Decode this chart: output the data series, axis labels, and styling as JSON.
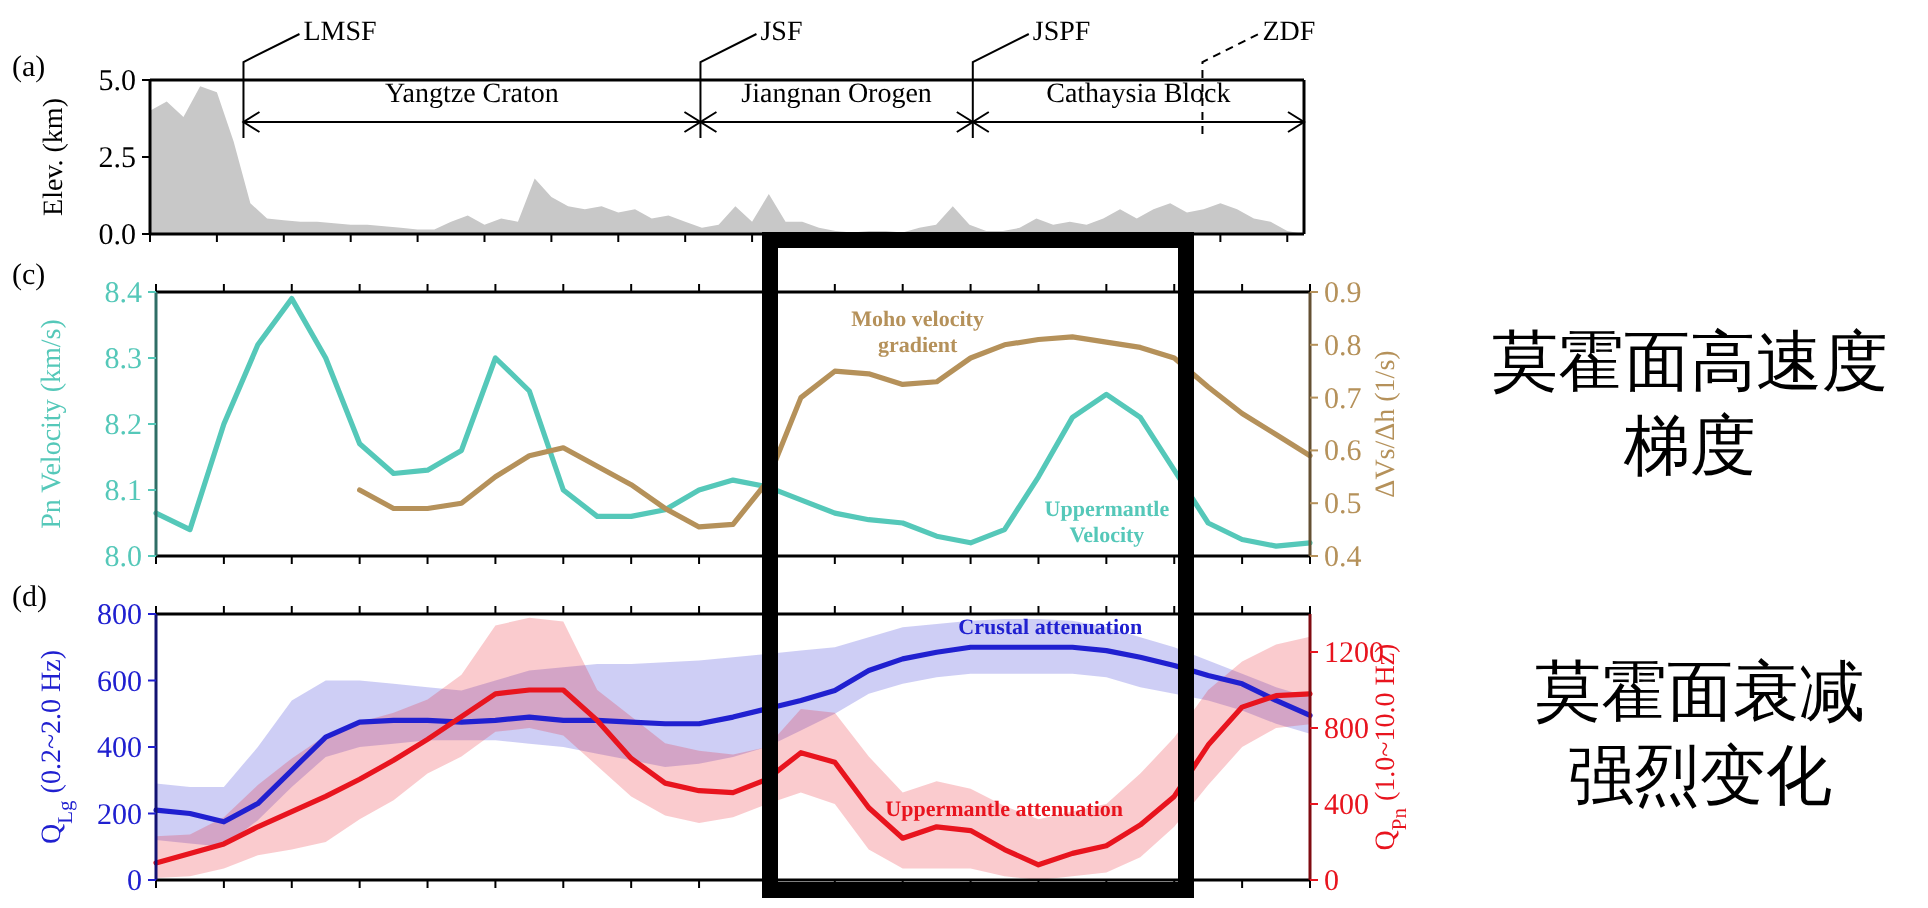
{
  "chart_data": [
    {
      "type": "area",
      "title": "(a)",
      "ylabel": "Elev. (km)",
      "color": "#c8c8c8",
      "categories": [
        null,
        null,
        null,
        null,
        null,
        null,
        null,
        null,
        null,
        null,
        null,
        null,
        null,
        null,
        null,
        null,
        null,
        null,
        null,
        null,
        null,
        null,
        null,
        null,
        null,
        null,
        null,
        null,
        null,
        null,
        null,
        null,
        null,
        null,
        null,
        null,
        null,
        null,
        null,
        null,
        null,
        null,
        null,
        null,
        null,
        null,
        null,
        null,
        null,
        null,
        null,
        null,
        null,
        null,
        null,
        null,
        null,
        null,
        null,
        null,
        null,
        null,
        null,
        null,
        null,
        null,
        null,
        null,
        null,
        null
      ],
      "values": [
        4.0,
        4.3,
        3.8,
        4.8,
        4.6,
        3.0,
        1.0,
        0.5,
        0.45,
        0.4,
        0.4,
        0.35,
        0.3,
        0.3,
        0.25,
        0.2,
        0.15,
        0.15,
        0.4,
        0.6,
        0.3,
        0.5,
        0.4,
        1.8,
        1.2,
        0.9,
        0.8,
        0.9,
        0.7,
        0.8,
        0.5,
        0.6,
        0.4,
        0.2,
        0.3,
        0.9,
        0.4,
        1.3,
        0.4,
        0.4,
        0.2,
        0.1,
        0.05,
        0.1,
        0.1,
        0.05,
        0.2,
        0.3,
        0.9,
        0.3,
        0.1,
        0.1,
        0.2,
        0.5,
        0.3,
        0.4,
        0.3,
        0.5,
        0.8,
        0.5,
        0.8,
        1.0,
        0.7,
        0.8,
        1.0,
        0.8,
        0.5,
        0.4,
        0.1,
        0.0
      ],
      "ylim": [
        0,
        5
      ],
      "yticks": [
        {
          "value": 0,
          "label": "0.0"
        },
        {
          "value": 2.5,
          "label": "2.5"
        },
        {
          "value": 5,
          "label": "5.0"
        }
      ],
      "annotations": [
        "LMSF",
        "JSF",
        "JSPF",
        "ZDF",
        "Yangtze Craton",
        "Jiangnan Orogen",
        "Cathaysia Block"
      ]
    },
    {
      "type": "line",
      "title": "(c)",
      "ylabel": "Pn Velocity (km/s)",
      "y2label": "ΔVs/Δh (1/s)",
      "categories": [
        null,
        null,
        null,
        null,
        null,
        null,
        null,
        null,
        null,
        null,
        null,
        null,
        null,
        null,
        null,
        null,
        null,
        null,
        null,
        null,
        null,
        null,
        null,
        null,
        null,
        null,
        null,
        null,
        null,
        null,
        null,
        null,
        null,
        null,
        null
      ],
      "series": [
        {
          "name": "Uppermantle Velocity",
          "color": "#55c8b9",
          "values": [
            8.065,
            8.04,
            8.2,
            8.32,
            8.39,
            8.3,
            8.17,
            8.125,
            8.13,
            8.16,
            8.3,
            8.25,
            8.1,
            8.06,
            8.06,
            8.07,
            8.1,
            8.115,
            8.105,
            8.085,
            8.065,
            8.055,
            8.05,
            8.03,
            8.02,
            8.04,
            8.12,
            8.21,
            8.245,
            8.21,
            8.13,
            8.05,
            8.025,
            8.015,
            8.02
          ]
        },
        {
          "name": "Moho velocity gradient",
          "color": "#b5915a",
          "axis": "y2",
          "values": [
            null,
            null,
            null,
            null,
            null,
            null,
            0.525,
            0.49,
            0.49,
            0.5,
            0.55,
            0.59,
            0.605,
            0.57,
            0.535,
            0.49,
            0.455,
            0.46,
            0.54,
            0.7,
            0.75,
            0.745,
            0.725,
            0.73,
            0.775,
            0.8,
            0.81,
            0.815,
            0.805,
            0.795,
            0.775,
            0.72,
            0.67,
            0.63,
            0.59
          ]
        }
      ],
      "ylim": [
        8.0,
        8.4
      ],
      "yticks": [
        {
          "value": 8,
          "label": "8.0"
        },
        8.1,
        8.2,
        8.3,
        8.4
      ],
      "y2lim": [
        0.4,
        0.9
      ],
      "y2ticks": [
        0.4,
        0.5,
        0.6,
        0.7,
        0.8,
        0.9
      ],
      "annotations": [
        "莫霍面高速度",
        "梯度"
      ]
    },
    {
      "type": "line",
      "title": "(d)",
      "ylabel": "Q$_{Lg}$ (0.2~2.0 Hz)",
      "y2label": "Q$_{Pn}$ (1.0~10.0 Hz)",
      "categories": [
        null,
        null,
        null,
        null,
        null,
        null,
        null,
        null,
        null,
        null,
        null,
        null,
        null,
        null,
        null,
        null,
        null,
        null,
        null,
        null,
        null,
        null,
        null,
        null,
        null,
        null,
        null,
        null,
        null,
        null,
        null,
        null,
        null,
        null,
        null
      ],
      "series": [
        {
          "name": "Crustal attenuation",
          "color": "#2020d0",
          "values": [
            210,
            200,
            175,
            230,
            330,
            430,
            475,
            480,
            480,
            475,
            480,
            490,
            480,
            480,
            475,
            470,
            470,
            490,
            515,
            540,
            570,
            630,
            665,
            685,
            700,
            700,
            700,
            700,
            690,
            670,
            645,
            615,
            590,
            540,
            495
          ],
          "upper": [
            290,
            280,
            280,
            400,
            540,
            600,
            600,
            590,
            580,
            570,
            600,
            630,
            640,
            650,
            650,
            655,
            660,
            670,
            680,
            690,
            700,
            730,
            760,
            770,
            780,
            785,
            785,
            780,
            760,
            730,
            700,
            660,
            620,
            580,
            550
          ],
          "lower": [
            120,
            110,
            100,
            180,
            280,
            370,
            400,
            410,
            420,
            420,
            420,
            410,
            400,
            380,
            360,
            340,
            350,
            370,
            400,
            450,
            500,
            560,
            590,
            610,
            620,
            620,
            620,
            620,
            610,
            580,
            560,
            540,
            510,
            470,
            440
          ]
        },
        {
          "name": "Uppermantle attenuation",
          "color": "#e8141e",
          "axis": "y2",
          "values": [
            90,
            140,
            190,
            280,
            360,
            440,
            530,
            630,
            740,
            860,
            980,
            1000,
            1000,
            840,
            640,
            510,
            470,
            460,
            530,
            670,
            620,
            380,
            220,
            280,
            260,
            160,
            80,
            140,
            180,
            290,
            440,
            710,
            910,
            970,
            980
          ],
          "upper": [
            230,
            240,
            330,
            500,
            640,
            760,
            830,
            880,
            950,
            1080,
            1340,
            1380,
            1360,
            1000,
            860,
            720,
            680,
            660,
            700,
            900,
            880,
            650,
            460,
            520,
            480,
            390,
            320,
            360,
            400,
            560,
            750,
            1000,
            1150,
            1240,
            1280
          ],
          "lower": [
            10,
            20,
            60,
            130,
            160,
            200,
            320,
            420,
            560,
            650,
            780,
            800,
            760,
            600,
            440,
            340,
            300,
            330,
            400,
            460,
            400,
            160,
            60,
            60,
            60,
            20,
            0,
            20,
            40,
            120,
            280,
            500,
            700,
            800,
            820
          ]
        }
      ],
      "ylim": [
        0,
        800
      ],
      "yticks": [
        0,
        200,
        400,
        600,
        800
      ],
      "y2lim": [
        0,
        1400
      ],
      "y2ticks": [
        0,
        400,
        800,
        1200
      ],
      "annotations": [
        "莫霍面衰减",
        "强烈变化"
      ]
    }
  ]
}
